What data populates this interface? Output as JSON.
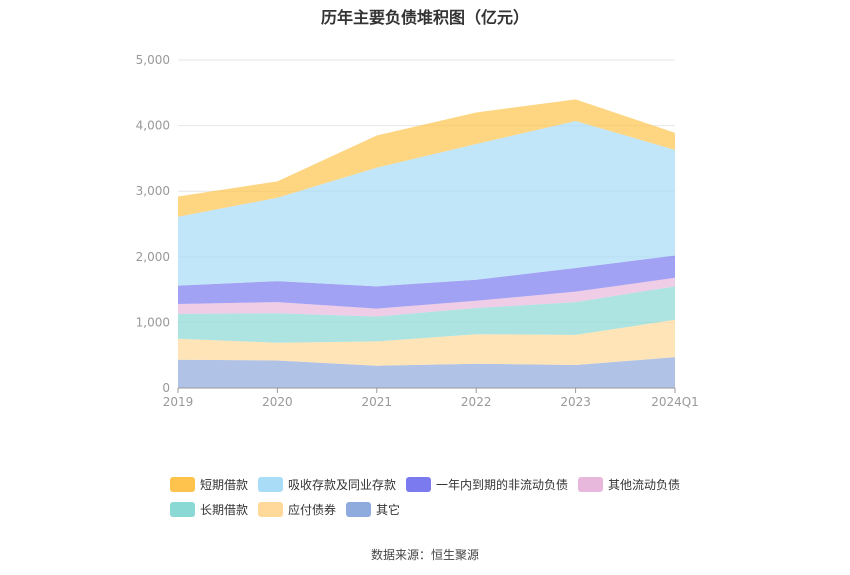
{
  "chart_data": {
    "type": "area",
    "stacked": true,
    "title": "历年主要负债堆积图（亿元）",
    "categories": [
      "2019",
      "2020",
      "2021",
      "2022",
      "2023",
      "2024Q1"
    ],
    "ylim": [
      0,
      5000
    ],
    "yticks": [
      "0",
      "1,000",
      "2,000",
      "3,000",
      "4,000",
      "5,000"
    ],
    "grid": true,
    "legend_position": "bottom",
    "series": [
      {
        "name": "其它",
        "color": "#8faadc",
        "values": [
          430,
          420,
          340,
          370,
          350,
          470
        ]
      },
      {
        "name": "应付债券",
        "color": "#ffd99a",
        "values": [
          320,
          270,
          370,
          450,
          460,
          570
        ]
      },
      {
        "name": "长期借款",
        "color": "#8ad9d5",
        "values": [
          380,
          450,
          380,
          400,
          500,
          510
        ]
      },
      {
        "name": "其他流动负债",
        "color": "#e8b8dc",
        "values": [
          150,
          170,
          120,
          110,
          160,
          130
        ]
      },
      {
        "name": "一年内到期的非流动负债",
        "color": "#7b7bef",
        "values": [
          280,
          320,
          340,
          320,
          360,
          340
        ]
      },
      {
        "name": "吸收存款及同业存款",
        "color": "#a8dcf7",
        "values": [
          1050,
          1270,
          1810,
          2070,
          2240,
          1610
        ]
      },
      {
        "name": "短期借款",
        "color": "#fdc34c",
        "values": [
          310,
          250,
          490,
          480,
          330,
          260
        ]
      }
    ]
  },
  "legend_rows": [
    [
      {
        "label": "短期借款",
        "color": "#fdc34c"
      },
      {
        "label": "吸收存款及同业存款",
        "color": "#a8dcf7"
      },
      {
        "label": "一年内到期的非流动负债",
        "color": "#7b7bef"
      },
      {
        "label": "其他流动负债",
        "color": "#e8b8dc"
      }
    ],
    [
      {
        "label": "长期借款",
        "color": "#8ad9d5"
      },
      {
        "label": "应付债券",
        "color": "#ffd99a"
      },
      {
        "label": "其它",
        "color": "#8faadc"
      }
    ]
  ],
  "source": "数据来源：恒生聚源"
}
